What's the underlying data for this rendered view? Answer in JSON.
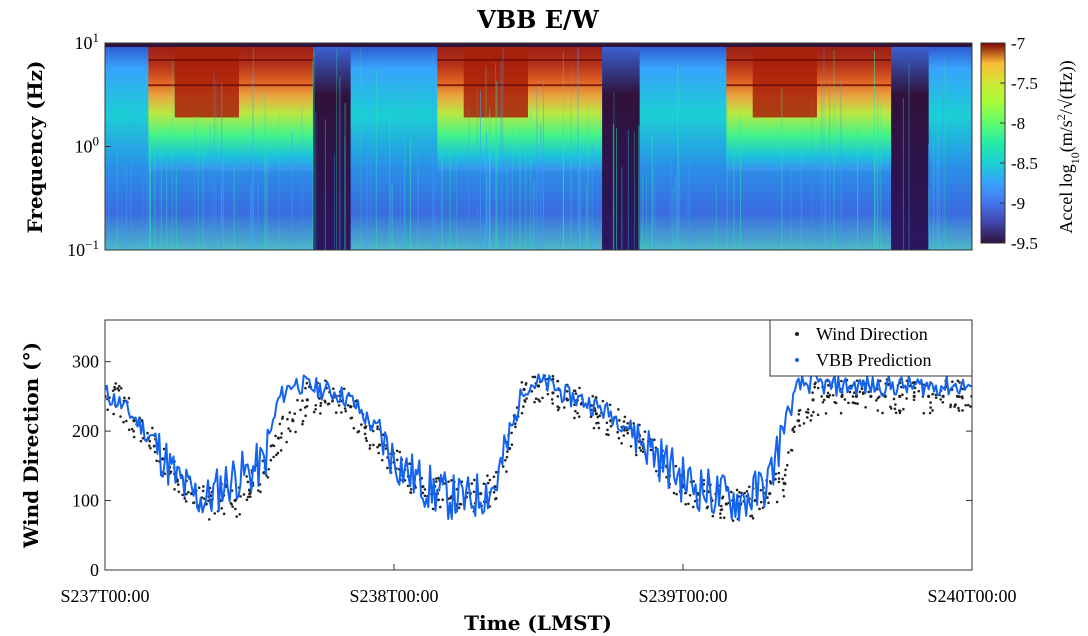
{
  "chart_data": [
    {
      "type": "heatmap",
      "title": "VBB E/W",
      "ylabel": "Frequency (Hz)",
      "yscale": "log",
      "ylim": [
        0.1,
        10
      ],
      "y_ticks": [
        {
          "value": 10,
          "base": "10",
          "exp": "1"
        },
        {
          "value": 1,
          "base": "10",
          "exp": "0"
        },
        {
          "value": 0.1,
          "base": "10",
          "exp": "−1"
        }
      ],
      "colorbar": {
        "label_parts": {
          "prefix": "Accel log",
          "sub": "10",
          "mid": "(m/s",
          "sup": "2",
          "suffix": "/√(Hz))"
        },
        "range": [
          -9.5,
          -7
        ],
        "ticks": [
          "-7",
          "-7.5",
          "-8",
          "-8.5",
          "-9",
          "-9.5"
        ],
        "colormap": "turbo"
      },
      "x_range_days": [
        0,
        3
      ],
      "high_activity_windows_days": [
        [
          0.15,
          0.72
        ],
        [
          1.15,
          1.72
        ],
        [
          2.15,
          2.72
        ]
      ],
      "quiet_windows_days": [
        [
          0.72,
          0.85
        ],
        [
          1.72,
          1.85
        ],
        [
          2.72,
          2.85
        ]
      ]
    },
    {
      "type": "scatter",
      "xlabel": "Time (LMST)",
      "ylabel": "Wind Direction (°)",
      "ylim": [
        0,
        360
      ],
      "y_ticks": [
        "0",
        "100",
        "200",
        "300"
      ],
      "x_ticks": [
        "S237T00:00",
        "S238T00:00",
        "S239T00:00",
        "S240T00:00"
      ],
      "x_range_days": [
        0,
        3
      ],
      "legend_position": "top-right",
      "series": [
        {
          "name": "Wind Direction",
          "style": "points",
          "color": "#222222",
          "x": [
            0.0,
            0.05,
            0.1,
            0.15,
            0.2,
            0.25,
            0.3,
            0.35,
            0.4,
            0.45,
            0.5,
            0.55,
            0.6,
            0.65,
            0.7,
            0.75,
            0.8,
            0.85,
            0.9,
            0.95,
            1.0,
            1.05,
            1.1,
            1.15,
            1.2,
            1.25,
            1.3,
            1.35,
            1.4,
            1.45,
            1.5,
            1.55,
            1.6,
            1.65,
            1.7,
            1.75,
            1.8,
            1.85,
            1.9,
            1.95,
            2.0,
            2.05,
            2.1,
            2.15,
            2.2,
            2.25,
            2.3,
            2.35,
            2.4,
            2.45,
            2.5,
            2.55,
            2.6,
            2.65,
            2.7,
            2.75,
            2.8,
            2.85,
            2.9,
            2.95,
            3.0
          ],
          "y": [
            250,
            245,
            215,
            190,
            160,
            130,
            110,
            95,
            100,
            100,
            115,
            140,
            190,
            215,
            245,
            250,
            250,
            235,
            205,
            180,
            155,
            135,
            120,
            110,
            105,
            105,
            110,
            120,
            175,
            260,
            265,
            255,
            245,
            240,
            225,
            215,
            205,
            185,
            165,
            140,
            120,
            110,
            100,
            95,
            95,
            100,
            110,
            125,
            215,
            245,
            250,
            250,
            250,
            250,
            250,
            250,
            250,
            250,
            250,
            250,
            250
          ]
        },
        {
          "name": "VBB Prediction",
          "style": "line",
          "color": "#1464f0",
          "x": [
            0.0,
            0.05,
            0.1,
            0.15,
            0.2,
            0.25,
            0.3,
            0.35,
            0.4,
            0.45,
            0.5,
            0.55,
            0.6,
            0.65,
            0.7,
            0.75,
            0.8,
            0.85,
            0.9,
            0.95,
            1.0,
            1.05,
            1.1,
            1.15,
            1.2,
            1.25,
            1.3,
            1.35,
            1.4,
            1.45,
            1.5,
            1.55,
            1.6,
            1.65,
            1.7,
            1.75,
            1.8,
            1.85,
            1.9,
            1.95,
            2.0,
            2.05,
            2.1,
            2.15,
            2.2,
            2.25,
            2.3,
            2.35,
            2.4,
            2.45,
            2.5,
            2.55,
            2.6,
            2.65,
            2.7,
            2.75,
            2.8,
            2.85,
            2.9,
            2.95,
            3.0
          ],
          "y": [
            255,
            240,
            220,
            195,
            165,
            130,
            110,
            100,
            120,
            135,
            140,
            155,
            245,
            270,
            265,
            260,
            255,
            245,
            220,
            195,
            160,
            140,
            125,
            110,
            105,
            100,
            110,
            120,
            190,
            265,
            270,
            265,
            250,
            245,
            235,
            225,
            210,
            190,
            170,
            150,
            130,
            120,
            110,
            105,
            100,
            110,
            130,
            210,
            265,
            270,
            265,
            265,
            265,
            265,
            265,
            265,
            265,
            265,
            265,
            265,
            265
          ]
        }
      ]
    }
  ]
}
